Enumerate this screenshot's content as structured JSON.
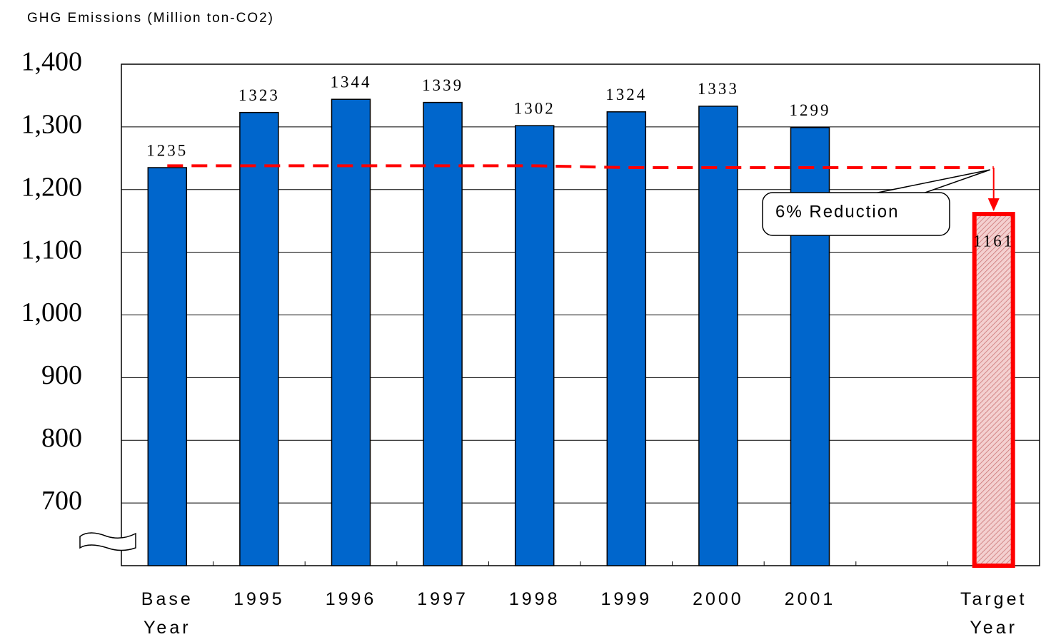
{
  "chart_data": {
    "type": "bar",
    "y_axis_title": "GHG Emissions (Million ton-CO2)",
    "categories": [
      "Base Year",
      "1995",
      "1996",
      "1997",
      "1998",
      "1999",
      "2000",
      "2001",
      null,
      "Target Year"
    ],
    "series": [
      {
        "values": [
          1235,
          1323,
          1344,
          1339,
          1302,
          1324,
          1333,
          1299,
          null,
          1161
        ],
        "colors": [
          "#0066cc",
          "#0066cc",
          "#0066cc",
          "#0066cc",
          "#0066cc",
          "#0066cc",
          "#0066cc",
          "#0066cc",
          null,
          "#ff0000"
        ]
      }
    ],
    "reference_line": {
      "color": "#ff0000",
      "values": [
        1238,
        1238,
        1238,
        1238,
        1238,
        1235,
        1235,
        1235,
        1235,
        1235
      ]
    },
    "annotation": "6% Reduction",
    "ylim": [
      600,
      1400
    ],
    "yticks": [
      {
        "value": 1400,
        "label": "1,400"
      },
      {
        "value": 1300,
        "label": "1,300"
      },
      {
        "value": 1200,
        "label": "1,200"
      },
      {
        "value": 1100,
        "label": "1,100"
      },
      {
        "value": 1000,
        "label": "1,000"
      },
      900,
      800,
      700
    ],
    "grid": true
  }
}
